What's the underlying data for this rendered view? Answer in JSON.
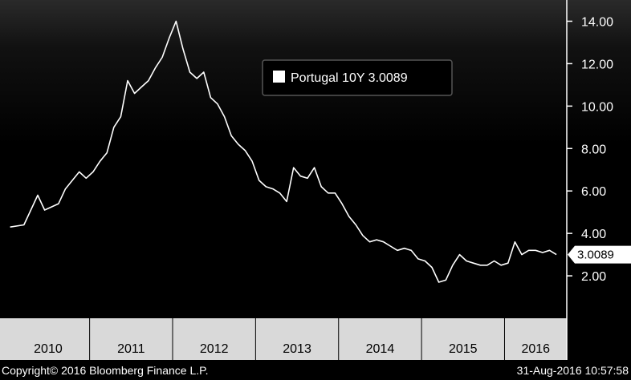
{
  "chart_data": {
    "type": "line",
    "title": "",
    "xlabel": "",
    "ylabel": "",
    "ylim": [
      0,
      15
    ],
    "y_ticks": [
      "14.00",
      "12.00",
      "10.00",
      "8.00",
      "6.00",
      "4.00",
      "2.00"
    ],
    "x_ticks": [
      "2010",
      "2011",
      "2012",
      "2013",
      "2014",
      "2015",
      "2016"
    ],
    "grid": false,
    "legend": {
      "label": "Portugal 10Y 3.0089",
      "placement": "top-center"
    },
    "last_value_label": "3.0089",
    "series": [
      {
        "name": "Portugal 10Y",
        "color": "#ffffff",
        "x": [
          "2010-01",
          "2010-03",
          "2010-05",
          "2010-06",
          "2010-08",
          "2010-09",
          "2010-11",
          "2010-12",
          "2011-01",
          "2011-02",
          "2011-03",
          "2011-04",
          "2011-05",
          "2011-06",
          "2011-07",
          "2011-08",
          "2011-09",
          "2011-10",
          "2011-11",
          "2011-12",
          "2012-01",
          "2012-02",
          "2012-03",
          "2012-04",
          "2012-05",
          "2012-06",
          "2012-07",
          "2012-08",
          "2012-09",
          "2012-10",
          "2012-11",
          "2012-12",
          "2013-01",
          "2013-02",
          "2013-03",
          "2013-04",
          "2013-05",
          "2013-06",
          "2013-07",
          "2013-08",
          "2013-09",
          "2013-10",
          "2013-11",
          "2013-12",
          "2014-01",
          "2014-02",
          "2014-03",
          "2014-04",
          "2014-05",
          "2014-06",
          "2014-07",
          "2014-08",
          "2014-09",
          "2014-10",
          "2014-11",
          "2014-12",
          "2015-01",
          "2015-02",
          "2015-03",
          "2015-04",
          "2015-05",
          "2015-06",
          "2015-07",
          "2015-08",
          "2015-09",
          "2015-10",
          "2015-11",
          "2015-12",
          "2016-01",
          "2016-02",
          "2016-03",
          "2016-04",
          "2016-05",
          "2016-06",
          "2016-07",
          "2016-08"
        ],
        "values": [
          4.3,
          4.4,
          5.8,
          5.1,
          5.4,
          6.1,
          6.9,
          6.6,
          6.9,
          7.4,
          7.8,
          9.0,
          9.5,
          11.2,
          10.6,
          10.9,
          11.2,
          11.8,
          12.3,
          13.2,
          14.0,
          12.7,
          11.6,
          11.3,
          11.6,
          10.4,
          10.1,
          9.5,
          8.6,
          8.2,
          7.9,
          7.4,
          6.5,
          6.2,
          6.1,
          5.9,
          5.5,
          7.1,
          6.7,
          6.6,
          7.1,
          6.2,
          5.9,
          5.9,
          5.4,
          4.8,
          4.4,
          3.9,
          3.6,
          3.7,
          3.6,
          3.4,
          3.2,
          3.3,
          3.2,
          2.8,
          2.7,
          2.4,
          1.7,
          1.8,
          2.5,
          3.0,
          2.7,
          2.6,
          2.5,
          2.5,
          2.7,
          2.5,
          2.6,
          3.6,
          3.0,
          3.2,
          3.2,
          3.1,
          3.2,
          3.0
        ]
      }
    ]
  },
  "footer": {
    "copyright": "Copyright© 2016 Bloomberg Finance L.P.",
    "timestamp": "31-Aug-2016 10:57:58"
  }
}
